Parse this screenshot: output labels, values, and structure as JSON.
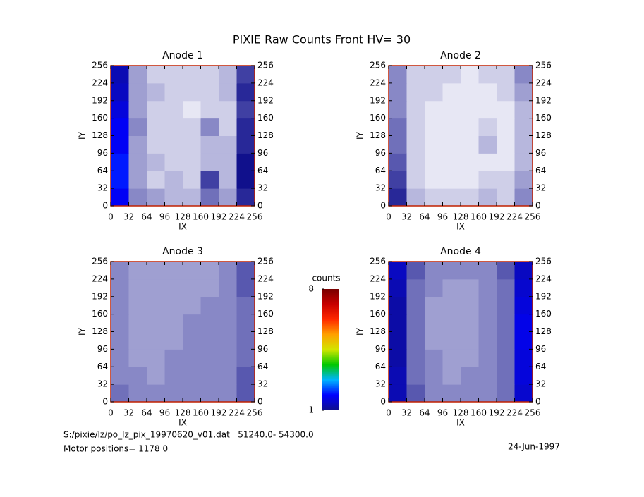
{
  "title": "PIXIE Raw Counts Front HV= 30",
  "chart_data": [
    {
      "type": "heatmap",
      "title": "Anode 1",
      "xlabel": "IX",
      "ylabel": "IY",
      "xlim": [
        0,
        256
      ],
      "ylim": [
        0,
        256
      ],
      "xticks": [
        0,
        32,
        64,
        96,
        128,
        160,
        192,
        224,
        256
      ],
      "yticks": [
        0,
        32,
        64,
        96,
        128,
        160,
        192,
        224,
        256
      ],
      "z": [
        [
          1.8,
          0.5,
          0.4,
          0.3,
          0.3,
          0.6,
          0.4,
          0.9
        ],
        [
          2.0,
          0.4,
          0.2,
          0.3,
          0.2,
          0.8,
          0.3,
          1.0
        ],
        [
          2.0,
          0.4,
          0.3,
          0.2,
          0.2,
          0.3,
          0.3,
          1.0
        ],
        [
          1.8,
          0.4,
          0.2,
          0.2,
          0.2,
          0.3,
          0.3,
          0.9
        ],
        [
          1.8,
          0.5,
          0.2,
          0.2,
          0.2,
          0.5,
          0.2,
          0.9
        ],
        [
          1.6,
          0.4,
          0.2,
          0.2,
          0.1,
          0.2,
          0.2,
          0.8
        ],
        [
          1.4,
          0.4,
          0.3,
          0.2,
          0.2,
          0.2,
          0.3,
          0.9
        ],
        [
          1.3,
          0.4,
          0.2,
          0.2,
          0.2,
          0.2,
          0.3,
          0.8
        ]
      ]
    },
    {
      "type": "heatmap",
      "title": "Anode 2",
      "xlabel": "IX",
      "ylabel": "IY",
      "xlim": [
        0,
        256
      ],
      "ylim": [
        0,
        256
      ],
      "xticks": [
        0,
        32,
        64,
        96,
        128,
        160,
        192,
        224,
        256
      ],
      "yticks": [
        0,
        32,
        64,
        96,
        128,
        160,
        192,
        224,
        256
      ],
      "z": [
        [
          0.9,
          0.3,
          0.2,
          0.2,
          0.2,
          0.3,
          0.2,
          0.5
        ],
        [
          0.8,
          0.2,
          0.1,
          0.1,
          0.1,
          0.2,
          0.2,
          0.4
        ],
        [
          0.7,
          0.2,
          0.1,
          0.1,
          0.1,
          0.1,
          0.1,
          0.3
        ],
        [
          0.6,
          0.2,
          0.1,
          0.1,
          0.1,
          0.3,
          0.1,
          0.3
        ],
        [
          0.6,
          0.2,
          0.1,
          0.1,
          0.1,
          0.2,
          0.1,
          0.3
        ],
        [
          0.5,
          0.2,
          0.1,
          0.1,
          0.1,
          0.1,
          0.1,
          0.3
        ],
        [
          0.5,
          0.2,
          0.2,
          0.1,
          0.1,
          0.1,
          0.2,
          0.4
        ],
        [
          0.5,
          0.2,
          0.2,
          0.2,
          0.1,
          0.2,
          0.2,
          0.5
        ]
      ]
    },
    {
      "type": "heatmap",
      "title": "Anode 3",
      "xlabel": "IX",
      "ylabel": "IY",
      "xlim": [
        0,
        256
      ],
      "ylim": [
        0,
        256
      ],
      "xticks": [
        0,
        32,
        64,
        96,
        128,
        160,
        192,
        224,
        256
      ],
      "yticks": [
        0,
        32,
        64,
        96,
        128,
        160,
        192,
        224,
        256
      ],
      "z": [
        [
          0.6,
          0.5,
          0.5,
          0.5,
          0.5,
          0.5,
          0.5,
          0.7
        ],
        [
          0.5,
          0.5,
          0.4,
          0.5,
          0.5,
          0.5,
          0.5,
          0.7
        ],
        [
          0.5,
          0.4,
          0.4,
          0.5,
          0.5,
          0.5,
          0.5,
          0.6
        ],
        [
          0.5,
          0.4,
          0.4,
          0.4,
          0.5,
          0.5,
          0.5,
          0.6
        ],
        [
          0.5,
          0.4,
          0.4,
          0.4,
          0.5,
          0.5,
          0.5,
          0.6
        ],
        [
          0.5,
          0.4,
          0.4,
          0.4,
          0.4,
          0.5,
          0.5,
          0.6
        ],
        [
          0.5,
          0.4,
          0.4,
          0.4,
          0.4,
          0.4,
          0.5,
          0.7
        ],
        [
          0.5,
          0.4,
          0.4,
          0.4,
          0.4,
          0.4,
          0.5,
          0.7
        ]
      ]
    },
    {
      "type": "heatmap",
      "title": "Anode 4",
      "xlabel": "IX",
      "ylabel": "IY",
      "xlim": [
        0,
        256
      ],
      "ylim": [
        0,
        256
      ],
      "xticks": [
        0,
        32,
        64,
        96,
        128,
        160,
        192,
        224,
        256
      ],
      "yticks": [
        0,
        32,
        64,
        96,
        128,
        160,
        192,
        224,
        256
      ],
      "z": [
        [
          1.3,
          0.7,
          0.5,
          0.5,
          0.5,
          0.5,
          0.6,
          1.5
        ],
        [
          1.3,
          0.6,
          0.5,
          0.4,
          0.5,
          0.5,
          0.6,
          1.6
        ],
        [
          1.2,
          0.6,
          0.5,
          0.4,
          0.4,
          0.5,
          0.6,
          1.6
        ],
        [
          1.2,
          0.6,
          0.4,
          0.4,
          0.4,
          0.5,
          0.6,
          1.7
        ],
        [
          1.2,
          0.6,
          0.4,
          0.4,
          0.4,
          0.5,
          0.6,
          1.7
        ],
        [
          1.2,
          0.6,
          0.4,
          0.4,
          0.4,
          0.5,
          0.6,
          1.6
        ],
        [
          1.3,
          0.6,
          0.5,
          0.4,
          0.4,
          0.5,
          0.6,
          1.5
        ],
        [
          1.4,
          0.7,
          0.5,
          0.5,
          0.5,
          0.5,
          0.7,
          1.4
        ]
      ]
    }
  ],
  "colorbar": {
    "label": "counts",
    "clim": [
      1,
      8
    ],
    "ticks": [
      1,
      8
    ],
    "colors": [
      "#10108c",
      "#0000ff",
      "#00b4ff",
      "#00c800",
      "#d2e600",
      "#ffa000",
      "#ff2800",
      "#c80000",
      "#780000"
    ]
  },
  "footer": {
    "file": "S:/pixie/lz/po_lz_pix_19970620_v01.dat   51240.0- 54300.0",
    "motor": "Motor positions= 1178 0",
    "date": "24-Jun-1997"
  }
}
